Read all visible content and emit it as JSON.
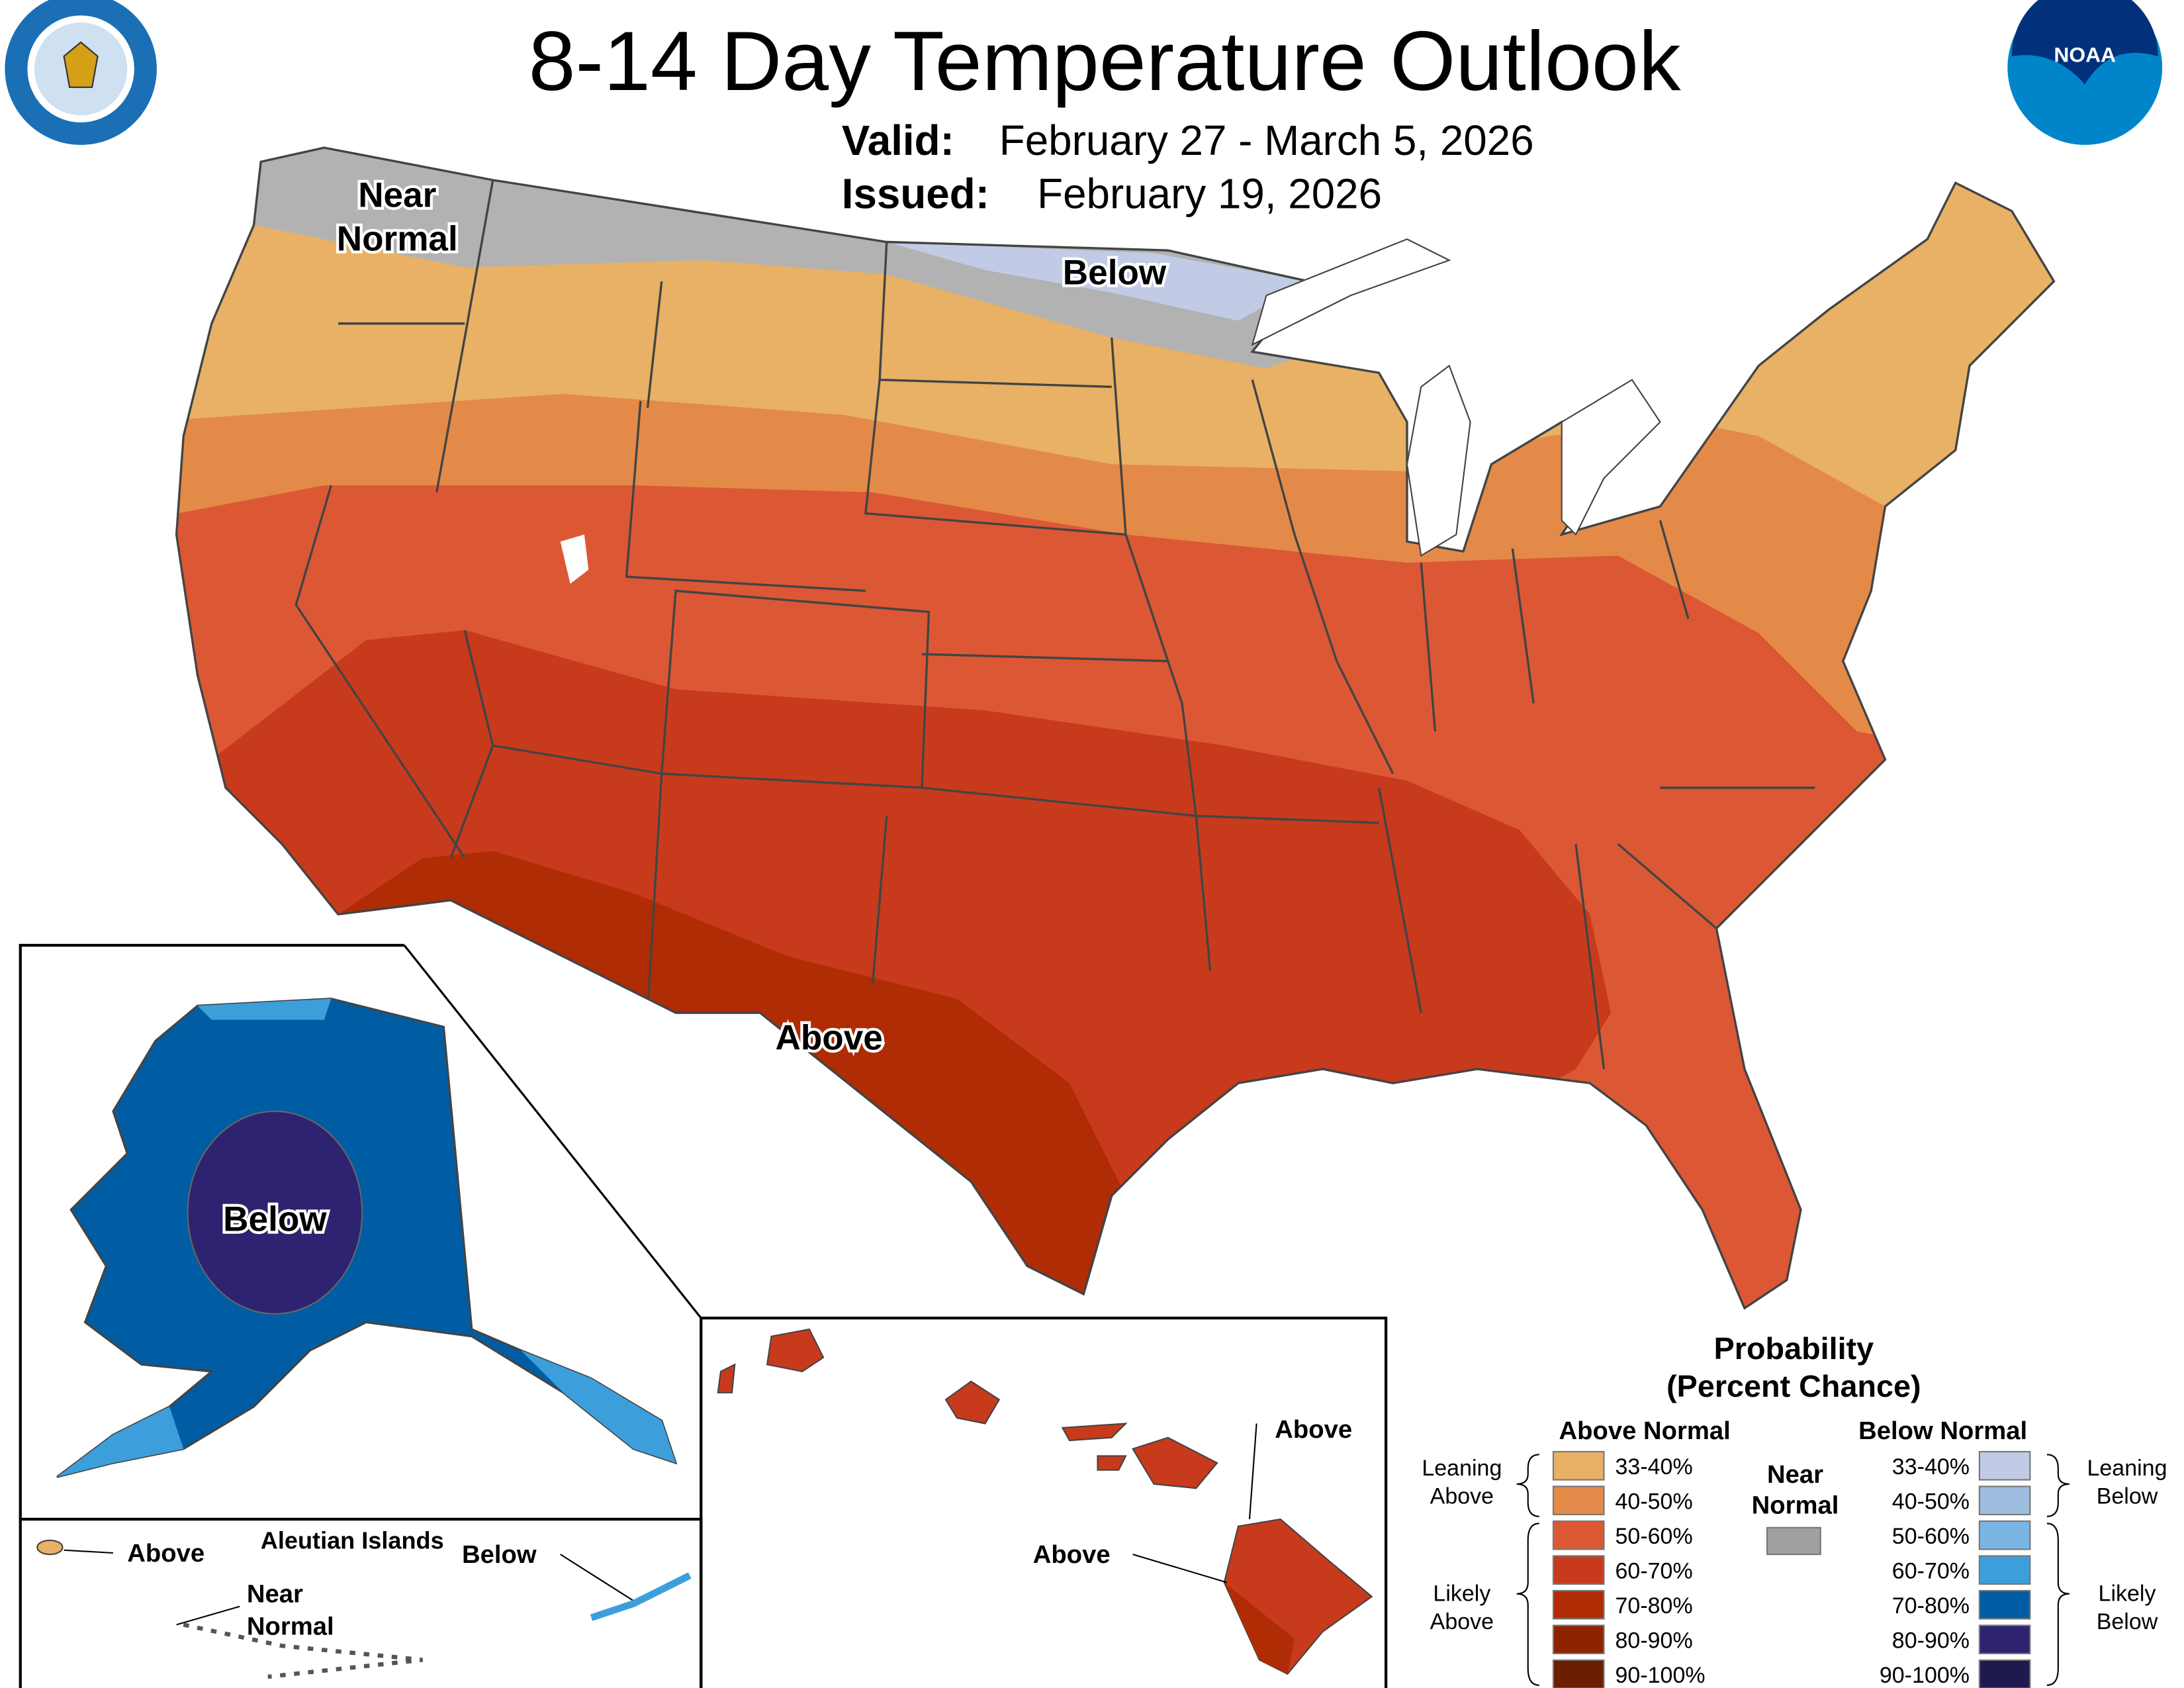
{
  "header": {
    "title": "8-14 Day Temperature Outlook",
    "valid_label": "Valid:",
    "valid_value": "February 27 - March 5, 2026",
    "issued_label": "Issued:",
    "issued_value": "February 19, 2026"
  },
  "logos": {
    "left": "DEPARTMENT OF COMMERCE UNITED STATES OF AMERICA",
    "right": "NOAA"
  },
  "map_labels": {
    "near_normal_1": "Near",
    "near_normal_2": "Normal",
    "below_north": "Below",
    "above_south": "Above",
    "alaska_below": "Below",
    "aleutian_title": "Aleutian Islands",
    "aleutian_above": "Above",
    "aleutian_below": "Below",
    "aleutian_near_1": "Near",
    "aleutian_near_2": "Normal",
    "hawaii_above_1": "Above",
    "hawaii_above_2": "Above"
  },
  "legend": {
    "title_1": "Probability",
    "title_2": "(Percent Chance)",
    "above_header": "Above Normal",
    "below_header": "Below Normal",
    "near_1": "Near",
    "near_2": "Normal",
    "near_color": "#a0a0a0",
    "leaning_above_1": "Leaning",
    "leaning_above_2": "Above",
    "likely_above_1": "Likely",
    "likely_above_2": "Above",
    "leaning_below_1": "Leaning",
    "leaning_below_2": "Below",
    "likely_below_1": "Likely",
    "likely_below_2": "Below",
    "above": [
      {
        "range": "33-40%",
        "color": "#e8b165"
      },
      {
        "range": "40-50%",
        "color": "#e48a48"
      },
      {
        "range": "50-60%",
        "color": "#dc5834"
      },
      {
        "range": "60-70%",
        "color": "#c83a1c"
      },
      {
        "range": "70-80%",
        "color": "#b02c05"
      },
      {
        "range": "80-90%",
        "color": "#8e2300"
      },
      {
        "range": "90-100%",
        "color": "#6c1e00"
      }
    ],
    "below": [
      {
        "range": "33-40%",
        "color": "#c1cbe5"
      },
      {
        "range": "40-50%",
        "color": "#9ebee0"
      },
      {
        "range": "50-60%",
        "color": "#7ab6e3"
      },
      {
        "range": "60-70%",
        "color": "#3c9fdc"
      },
      {
        "range": "70-80%",
        "color": "#005da3"
      },
      {
        "range": "80-90%",
        "color": "#2e2370"
      },
      {
        "range": "90-100%",
        "color": "#1f1a4e"
      }
    ]
  }
}
